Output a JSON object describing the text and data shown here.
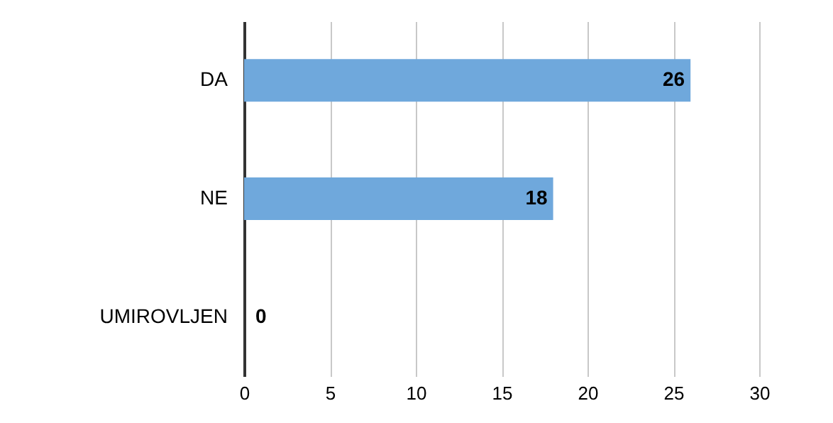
{
  "chart_data": {
    "type": "bar",
    "orientation": "horizontal",
    "categories": [
      "DA",
      "NE",
      "UMIROVLJEN"
    ],
    "values": [
      26,
      18,
      0
    ],
    "color": "#6fa8dc",
    "xlim": [
      0,
      30
    ],
    "xticks": [
      0,
      5,
      10,
      15,
      20,
      25,
      30
    ],
    "grid": "x",
    "data_labels": true
  }
}
